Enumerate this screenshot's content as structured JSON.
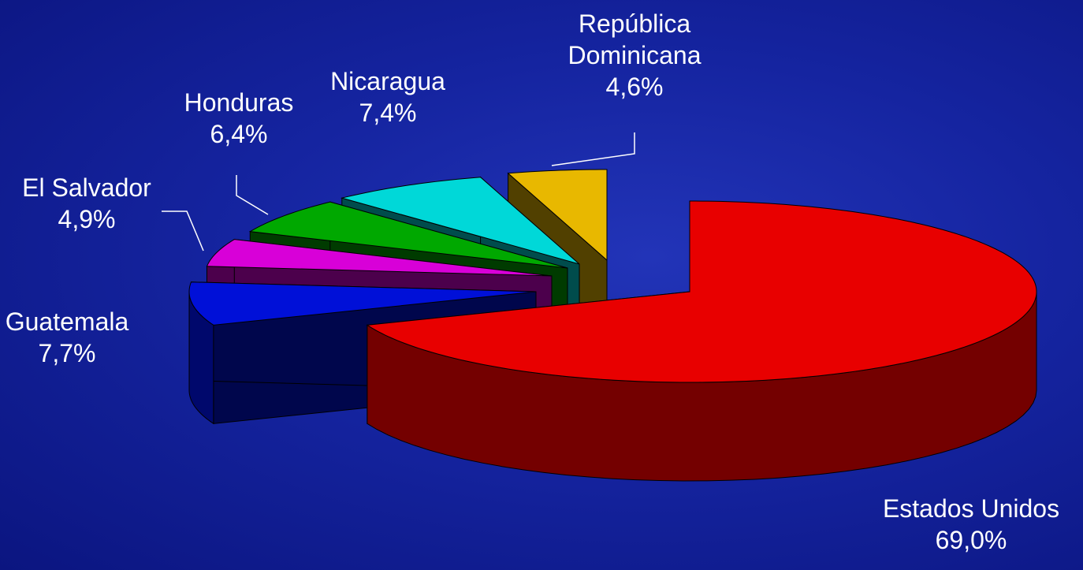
{
  "chart_data": {
    "type": "pie",
    "categories": [
      "Estados Unidos",
      "Guatemala",
      "El Salvador",
      "Honduras",
      "Nicaragua",
      "República Dominicana"
    ],
    "values": [
      69.0,
      7.7,
      4.9,
      6.4,
      7.4,
      4.6
    ],
    "value_labels": [
      "69,0%",
      "7,7%",
      "4,9%",
      "6,4%",
      "7,4%",
      "4,6%"
    ],
    "colors": [
      "#e80000",
      "#0010d8",
      "#d800d8",
      "#00a800",
      "#00d8d8",
      "#e8b800"
    ]
  }
}
